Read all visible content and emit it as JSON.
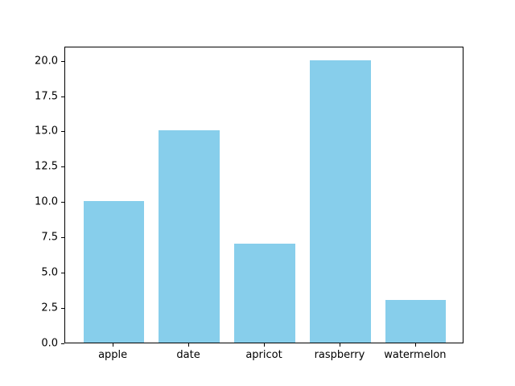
{
  "chart_data": {
    "type": "bar",
    "categories": [
      "apple",
      "date",
      "apricot",
      "raspberry",
      "watermelon"
    ],
    "values": [
      10,
      15,
      7,
      20,
      3
    ],
    "title": "",
    "xlabel": "",
    "ylabel": "",
    "ylim": [
      0,
      21
    ],
    "xlim": [
      -0.64,
      4.64
    ],
    "yticks": [
      0.0,
      2.5,
      5.0,
      7.5,
      10.0,
      12.5,
      15.0,
      17.5,
      20.0
    ],
    "ytick_label_format": "one_decimal",
    "bar_width_units": 0.8,
    "bar_color": "#87ceeb",
    "axes_edge_color": "#000000",
    "background_color": "#ffffff",
    "grid": false,
    "legend": "none"
  }
}
